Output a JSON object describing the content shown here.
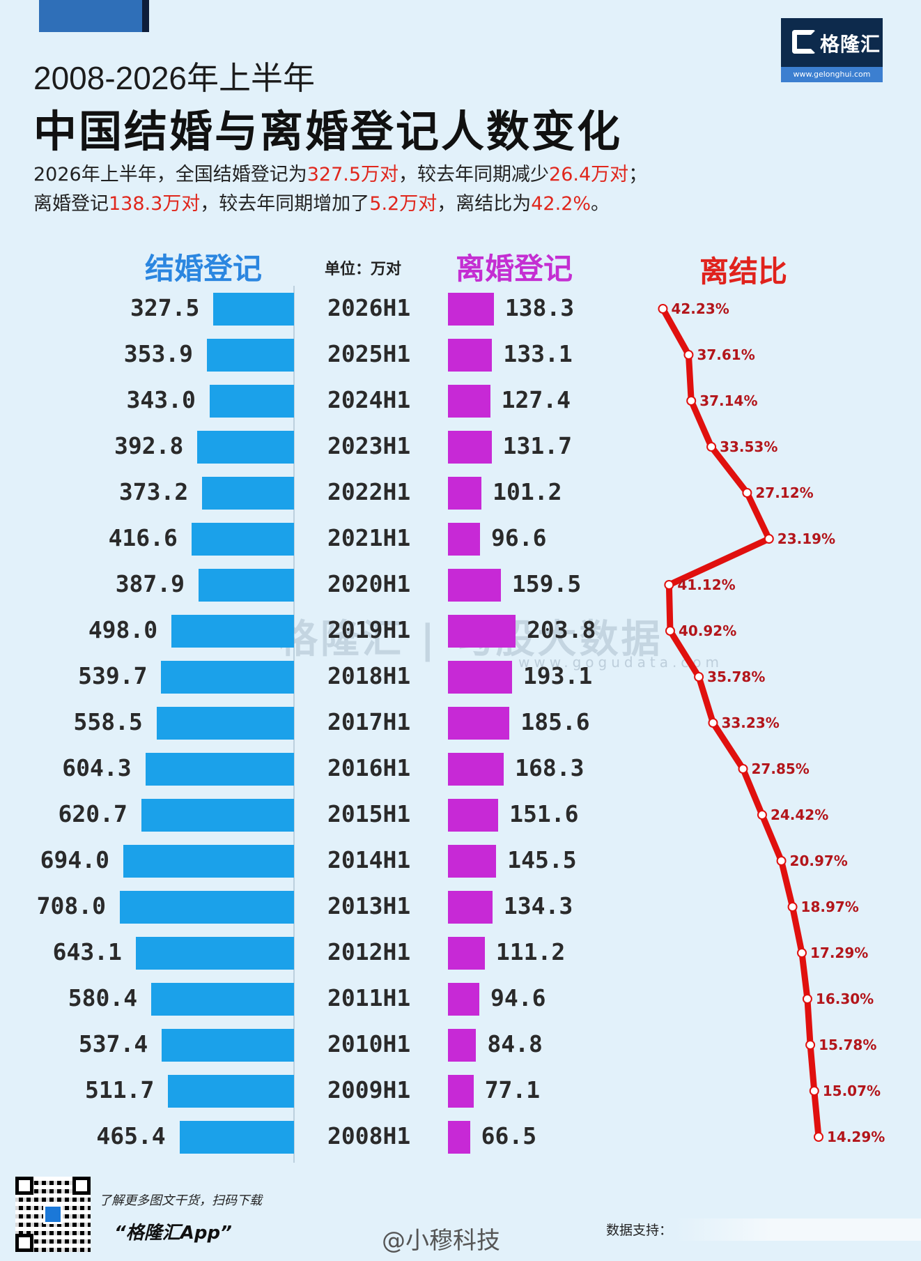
{
  "header": {
    "logo_brand": "格隆汇",
    "logo_url": "www.gelonghui.com",
    "title_line1": "2008-2026年上半年",
    "title_line2": "中国结婚与离婚登记人数变化"
  },
  "summary": {
    "l1_a": "2026年上半年，全国结婚登记为",
    "l1_b": "327.5万对",
    "l1_c": "，较去年同期减少",
    "l1_d": "26.4万对",
    "l1_e": "；",
    "l2_a": "离婚登记",
    "l2_b": "138.3万对",
    "l2_c": "，较去年同期增加了",
    "l2_d": "5.2万对",
    "l2_e": "，离结比为",
    "l2_f": "42.2%",
    "l2_g": "。"
  },
  "colors": {
    "marriage_bar": "#1ba1ea",
    "divorce_bar": "#c729d6",
    "ratio_line": "#e0100e",
    "highlight": "#e0261c"
  },
  "chart_data": {
    "type": "bar",
    "orientation": "horizontal-mirrored",
    "headers": {
      "marriage": "结婚登记",
      "unit": "单位：万对",
      "divorce": "离婚登记",
      "ratio": "离结比"
    },
    "categories": [
      "2026H1",
      "2025H1",
      "2024H1",
      "2023H1",
      "2022H1",
      "2021H1",
      "2020H1",
      "2019H1",
      "2018H1",
      "2017H1",
      "2016H1",
      "2015H1",
      "2014H1",
      "2013H1",
      "2012H1",
      "2011H1",
      "2010H1",
      "2009H1",
      "2008H1"
    ],
    "series": [
      {
        "name": "结婚登记",
        "values": [
          327.5,
          353.9,
          343.0,
          392.8,
          373.2,
          416.6,
          387.9,
          498.0,
          539.7,
          558.5,
          604.3,
          620.7,
          694.0,
          708.0,
          643.1,
          580.4,
          537.4,
          511.7,
          465.4
        ],
        "labels": [
          "327.5",
          "353.9",
          "343.0",
          "392.8",
          "373.2",
          "416.6",
          "387.9",
          "498.0",
          "539.7",
          "558.5",
          "604.3",
          "620.7",
          "694.0",
          "708.0",
          "643.1",
          "580.4",
          "537.4",
          "511.7",
          "465.4"
        ]
      },
      {
        "name": "离婚登记",
        "values": [
          138.3,
          133.1,
          127.4,
          131.7,
          101.2,
          96.6,
          159.5,
          203.8,
          193.1,
          185.6,
          168.3,
          151.6,
          145.5,
          134.3,
          111.2,
          94.6,
          84.8,
          77.1,
          66.5
        ],
        "labels": [
          "138.3",
          "133.1",
          "127.4",
          "131.7",
          "101.2",
          "96.6",
          "159.5",
          "203.8",
          "193.1",
          "185.6",
          "168.3",
          "151.6",
          "145.5",
          "134.3",
          "111.2",
          "94.6",
          "84.8",
          "77.1",
          "66.5"
        ]
      },
      {
        "name": "离结比",
        "type": "line",
        "values": [
          42.23,
          37.61,
          37.14,
          33.53,
          27.12,
          23.19,
          41.12,
          40.92,
          35.78,
          33.23,
          27.85,
          24.42,
          20.97,
          18.97,
          17.29,
          16.3,
          15.78,
          15.07,
          14.29
        ],
        "labels": [
          "42.23%",
          "37.61%",
          "37.14%",
          "33.53%",
          "27.12%",
          "23.19%",
          "41.12%",
          "40.92%",
          "35.78%",
          "33.23%",
          "27.85%",
          "24.42%",
          "20.97%",
          "18.97%",
          "17.29%",
          "16.30%",
          "15.78%",
          "15.07%",
          "14.29%"
        ]
      }
    ]
  },
  "watermark": {
    "text": "格隆汇 | 勾股大数据",
    "url": "www.gogudata.com"
  },
  "footer": {
    "scan_text": "了解更多图文干货，扫码下载",
    "app_name": "“格隆汇App”",
    "weibo_handle": "@小穆科技",
    "source_label": "数据支持："
  }
}
